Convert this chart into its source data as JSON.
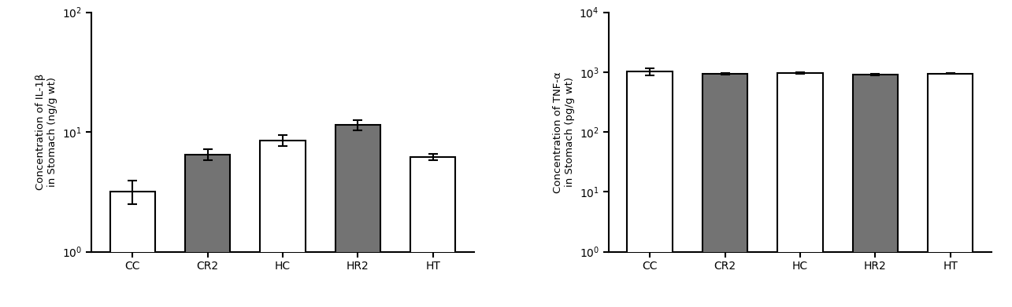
{
  "plot1": {
    "ylabel": "Concentration of IL-1β\nin Stomach (ng/g wt)",
    "categories": [
      "CC",
      "CR2",
      "HC",
      "HR2",
      "HT"
    ],
    "values": [
      3.2,
      6.5,
      8.5,
      11.5,
      6.2
    ],
    "errors": [
      0.7,
      0.7,
      0.9,
      1.1,
      0.4
    ],
    "colors": [
      "white",
      "#737373",
      "white",
      "#737373",
      "white"
    ],
    "ylim": [
      1.0,
      100.0
    ],
    "yticks": [
      1,
      10,
      100
    ]
  },
  "plot2": {
    "ylabel": "Concentration of TNF-α\nin Stomach (pg/g wt)",
    "categories": [
      "CC",
      "CR2",
      "HC",
      "HR2",
      "HT"
    ],
    "values": [
      1020,
      930,
      980,
      920,
      950
    ],
    "errors": [
      130,
      30,
      30,
      25,
      20
    ],
    "colors": [
      "white",
      "#737373",
      "white",
      "#737373",
      "white"
    ],
    "ylim": [
      1.0,
      10000.0
    ],
    "yticks": [
      1,
      10,
      100,
      1000,
      10000
    ]
  },
  "bar_width": 0.6,
  "background_color": "#ffffff",
  "edgecolor": "#000000",
  "fontsize_ylabel": 9.5,
  "fontsize_ticks": 10,
  "linewidth": 1.5,
  "capsize": 4
}
